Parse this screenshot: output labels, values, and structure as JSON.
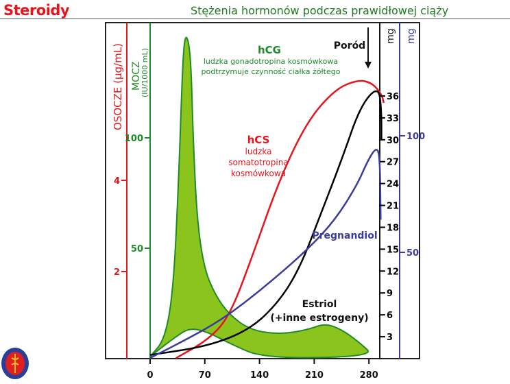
{
  "header": {
    "title": "Steroidy",
    "subtitle": "Stężenia hormonów podczas prawidłowej ciąży"
  },
  "colors": {
    "red": "#e8141c",
    "green": "#1f8a2a",
    "fill": "#8cc41e",
    "blue": "#3b3b9c",
    "black": "#000000"
  },
  "chart_data": {
    "type": "line",
    "title": "Stężenia hormonów podczas prawidłowej ciąży",
    "xlabel": "",
    "x_ticks": [
      "0",
      "70",
      "140",
      "210",
      "280"
    ],
    "x_tick_values": [
      0,
      70,
      140,
      210,
      280
    ],
    "xlim": [
      0,
      300
    ],
    "axes": {
      "plasma": {
        "label": "OSOCZE (µg/mL)",
        "ticks": [
          "2",
          "4"
        ],
        "tick_values": [
          2,
          4
        ]
      },
      "urine": {
        "label": "MOCZ",
        "sublabel": "(IU/1000 mL)",
        "ticks": [
          "50",
          "100"
        ],
        "tick_values": [
          50,
          100
        ]
      },
      "mg_black": {
        "label": "mg",
        "ticks": [
          "3",
          "6",
          "9",
          "12",
          "15",
          "18",
          "21",
          "24",
          "27",
          "30",
          "33",
          "36"
        ],
        "tick_values": [
          3,
          6,
          9,
          12,
          15,
          18,
          21,
          24,
          27,
          30,
          33,
          36
        ]
      },
      "mg_blue": {
        "label": "mg",
        "ticks": [
          "50",
          "100"
        ],
        "tick_values": [
          50,
          100
        ]
      }
    },
    "annotations": {
      "hcg_title": "hCG",
      "hcg_line1": "ludzka gonadotropina kosmówkowa",
      "hcg_line2": "podtrzymuje czynność ciałka żółtego",
      "hcs_title": "hCS",
      "hcs_line1": "ludzka",
      "hcs_line2": "somatotropina",
      "hcs_line3": "kosmówkowa",
      "pregnandiol": "Pregnandiol",
      "estriol": "Estriol",
      "estriol_sub": "(+inne estrogeny)",
      "delivery": "Poród"
    },
    "series": [
      {
        "name": "hCG (mocz, IU/1000 mL) - obwiednia górna",
        "axis": "urine",
        "type": "area",
        "x": [
          0,
          19,
          30,
          37,
          42,
          46,
          52,
          55,
          60,
          69,
          83,
          101,
          128,
          165,
          201,
          224,
          246,
          269,
          287
        ],
        "y": [
          1,
          8.7,
          32,
          85,
          138,
          148,
          138,
          100,
          63,
          41,
          29,
          20,
          13,
          11,
          13,
          16,
          13,
          7,
          1
        ],
        "lower_x": [
          146,
          101,
          74,
          51,
          33,
          0
        ],
        "lower_y": [
          0,
          7,
          12,
          14,
          10,
          1
        ]
      },
      {
        "name": "hCS (osocze, µg/mL)",
        "axis": "plasma",
        "x": [
          33,
          74,
          101,
          128,
          165,
          201,
          237,
          265,
          283,
          296,
          299
        ],
        "y": [
          0.1,
          0.5,
          1.0,
          2.2,
          4.0,
          5.3,
          6.0,
          6.2,
          6.15,
          5.9,
          5.7
        ]
      },
      {
        "name": "Estriol (mg)",
        "axis": "mg_black",
        "x": [
          0,
          74,
          128,
          165,
          192,
          219,
          246,
          269,
          292,
          296,
          296
        ],
        "y": [
          0.5,
          1.7,
          4.0,
          7.8,
          12.5,
          20,
          27.5,
          34.6,
          37.4,
          34.2,
          30
        ]
      },
      {
        "name": "Pregnandiol (mg)",
        "axis": "mg_blue",
        "x": [
          0,
          37,
          92,
          146,
          201,
          237,
          265,
          278,
          289,
          294,
          295
        ],
        "y": [
          4.7,
          11,
          21,
          35,
          51,
          64,
          79,
          89,
          95,
          92,
          64
        ]
      }
    ]
  }
}
